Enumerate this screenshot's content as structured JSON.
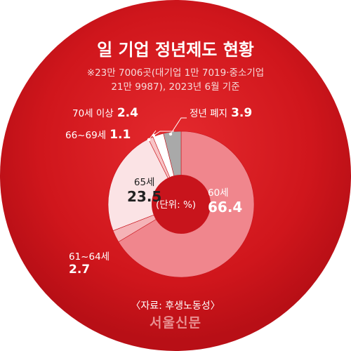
{
  "chart_data": {
    "type": "pie",
    "title": "일 기업 정년제도 현황",
    "subtitle_line1": "※23만 7006곳(대기업 1만 7019·중소기업",
    "subtitle_line2": "21만 9987), 2023년 6월 기준",
    "unit_label": "(단위: %)",
    "slices": [
      {
        "label": "60세",
        "value": 66.4,
        "color": "#f0868d"
      },
      {
        "label": "61~64세",
        "value": 2.7,
        "color": "#f5b3b7"
      },
      {
        "label": "65세",
        "value": 23.5,
        "color": "#fbe3e5"
      },
      {
        "label": "66~69세",
        "value": 1.1,
        "color": "#f8c4c6"
      },
      {
        "label": "70세 이상",
        "value": 2.4,
        "color": "#ffffff"
      },
      {
        "label": "정년 폐지",
        "value": 3.9,
        "color": "#a9a9a9"
      }
    ],
    "source": "〈자료: 후생노동성〉"
  },
  "brand": {
    "logo_text": "서울신문",
    "background_color": "#d4161d"
  }
}
